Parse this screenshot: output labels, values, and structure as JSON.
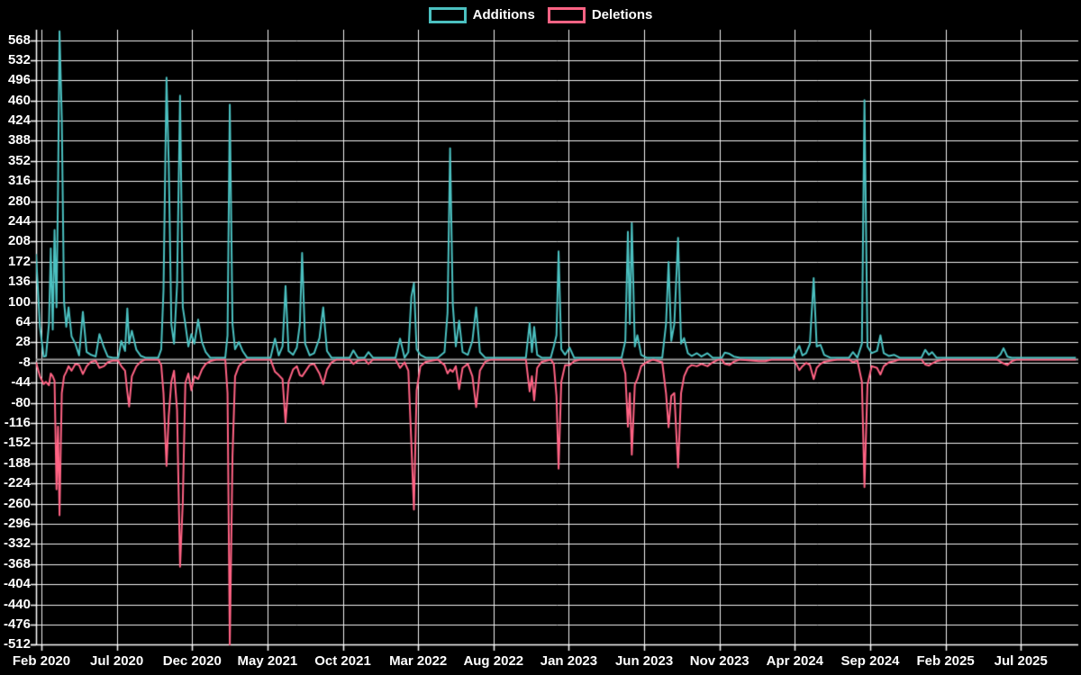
{
  "legend": {
    "items": [
      {
        "id": "additions",
        "label": "Additions",
        "color": "#4BC0C0"
      },
      {
        "id": "deletions",
        "label": "Deletions",
        "color": "#FF6384"
      }
    ]
  },
  "chart_data": {
    "type": "line",
    "title": "",
    "xlabel": "",
    "ylabel": "",
    "x_unit": "months since Feb 2020 (weekly data points)",
    "grid": true,
    "legend_position": "top-center",
    "ylim": [
      -512,
      586
    ],
    "xlim": [
      -0.4,
      68.7
    ],
    "y_ticks": [
      568,
      532,
      496,
      460,
      424,
      388,
      352,
      316,
      280,
      244,
      208,
      172,
      136,
      100,
      64,
      28,
      -8,
      -44,
      -80,
      -116,
      -152,
      -188,
      -224,
      -260,
      -296,
      -332,
      -368,
      -404,
      -440,
      -476,
      -512
    ],
    "x_ticks": [
      {
        "month": 0,
        "label": "Feb 2020"
      },
      {
        "month": 5,
        "label": "Jul 2020"
      },
      {
        "month": 10,
        "label": "Dec 2020"
      },
      {
        "month": 15,
        "label": "May 2021"
      },
      {
        "month": 20,
        "label": "Oct 2021"
      },
      {
        "month": 25,
        "label": "Mar 2022"
      },
      {
        "month": 30,
        "label": "Aug 2022"
      },
      {
        "month": 35,
        "label": "Jan 2023"
      },
      {
        "month": 40,
        "label": "Jun 2023"
      },
      {
        "month": 45,
        "label": "Nov 2023"
      },
      {
        "month": 50,
        "label": "Apr 2024"
      },
      {
        "month": 55,
        "label": "Sep 2024"
      },
      {
        "month": 60,
        "label": "Feb 2025"
      },
      {
        "month": 65,
        "label": "Jul 2025"
      }
    ],
    "series": [
      {
        "name": "Additions",
        "color": "#4BC0C0",
        "point_index": 1
      },
      {
        "name": "Deletions",
        "color": "#FF6384",
        "point_index": 2
      }
    ],
    "points_format": [
      "month",
      "additions",
      "deletions"
    ],
    "points": [
      [
        -0.36,
        185,
        -5
      ],
      [
        -0.1,
        55,
        -30
      ],
      [
        0.15,
        2,
        -44
      ],
      [
        0.3,
        3,
        -40
      ],
      [
        0.5,
        60,
        -46
      ],
      [
        0.62,
        195,
        -25
      ],
      [
        0.75,
        50,
        -30
      ],
      [
        0.87,
        228,
        -38
      ],
      [
        1.0,
        90,
        -232
      ],
      [
        1.1,
        300,
        -120
      ],
      [
        1.2,
        583,
        -278
      ],
      [
        1.35,
        428,
        -60
      ],
      [
        1.5,
        100,
        -30
      ],
      [
        1.65,
        55,
        -22
      ],
      [
        1.8,
        90,
        -12
      ],
      [
        2.0,
        38,
        -20
      ],
      [
        2.25,
        25,
        -8
      ],
      [
        2.5,
        4,
        -10
      ],
      [
        2.75,
        82,
        -26
      ],
      [
        3.0,
        10,
        -12
      ],
      [
        3.3,
        5,
        -4
      ],
      [
        3.6,
        2,
        -2
      ],
      [
        3.85,
        42,
        -15
      ],
      [
        4.15,
        18,
        -12
      ],
      [
        4.4,
        2,
        -5
      ],
      [
        4.75,
        0,
        -2
      ],
      [
        5.1,
        0,
        -2
      ],
      [
        5.3,
        30,
        -12
      ],
      [
        5.55,
        12,
        -20
      ],
      [
        5.7,
        88,
        -58
      ],
      [
        5.82,
        25,
        -84
      ],
      [
        6.0,
        48,
        -30
      ],
      [
        6.3,
        14,
        -12
      ],
      [
        6.6,
        3,
        -4
      ],
      [
        6.9,
        0,
        0
      ],
      [
        7.75,
        0,
        0
      ],
      [
        7.95,
        15,
        -10
      ],
      [
        8.1,
        120,
        -60
      ],
      [
        8.3,
        500,
        -190
      ],
      [
        8.45,
        345,
        -100
      ],
      [
        8.62,
        60,
        -40
      ],
      [
        8.8,
        25,
        -20
      ],
      [
        9.0,
        130,
        -90
      ],
      [
        9.2,
        468,
        -370
      ],
      [
        9.38,
        90,
        -255
      ],
      [
        9.55,
        60,
        -42
      ],
      [
        9.75,
        20,
        -25
      ],
      [
        9.95,
        42,
        -55
      ],
      [
        10.15,
        25,
        -30
      ],
      [
        10.4,
        68,
        -35
      ],
      [
        10.65,
        28,
        -18
      ],
      [
        10.9,
        10,
        -8
      ],
      [
        11.2,
        0,
        -3
      ],
      [
        11.6,
        0,
        0
      ],
      [
        12.2,
        0,
        0
      ],
      [
        12.35,
        40,
        -60
      ],
      [
        12.5,
        452,
        -511
      ],
      [
        12.68,
        60,
        -172
      ],
      [
        12.85,
        15,
        -30
      ],
      [
        13.1,
        28,
        -12
      ],
      [
        13.35,
        12,
        -5
      ],
      [
        13.65,
        0,
        0
      ],
      [
        15.2,
        0,
        0
      ],
      [
        15.5,
        34,
        -22
      ],
      [
        15.75,
        4,
        -28
      ],
      [
        16.0,
        20,
        -35
      ],
      [
        16.2,
        128,
        -113
      ],
      [
        16.4,
        12,
        -40
      ],
      [
        16.7,
        5,
        -18
      ],
      [
        16.95,
        18,
        -12
      ],
      [
        17.15,
        60,
        -28
      ],
      [
        17.3,
        187,
        -30
      ],
      [
        17.5,
        25,
        -22
      ],
      [
        17.8,
        4,
        -10
      ],
      [
        18.1,
        8,
        -8
      ],
      [
        18.45,
        35,
        -25
      ],
      [
        18.7,
        90,
        -44
      ],
      [
        18.95,
        12,
        -18
      ],
      [
        19.25,
        0,
        -5
      ],
      [
        19.6,
        0,
        0
      ],
      [
        20.45,
        0,
        0
      ],
      [
        20.7,
        13,
        -8
      ],
      [
        21.0,
        0,
        -2
      ],
      [
        21.45,
        0,
        0
      ],
      [
        21.7,
        10,
        -8
      ],
      [
        22.0,
        0,
        0
      ],
      [
        23.5,
        0,
        0
      ],
      [
        23.8,
        34,
        -15
      ],
      [
        24.1,
        0,
        -5
      ],
      [
        24.35,
        10,
        -20
      ],
      [
        24.55,
        109,
        -150
      ],
      [
        24.72,
        133,
        -268
      ],
      [
        24.9,
        15,
        -55
      ],
      [
        25.15,
        5,
        -12
      ],
      [
        25.5,
        0,
        -4
      ],
      [
        26.3,
        0,
        0
      ],
      [
        26.75,
        10,
        -10
      ],
      [
        26.95,
        80,
        -25
      ],
      [
        27.12,
        374,
        -18
      ],
      [
        27.3,
        95,
        -22
      ],
      [
        27.5,
        20,
        -12
      ],
      [
        27.72,
        66,
        -53
      ],
      [
        27.95,
        10,
        -15
      ],
      [
        28.3,
        5,
        -8
      ],
      [
        28.6,
        30,
        -30
      ],
      [
        28.85,
        90,
        -85
      ],
      [
        29.1,
        10,
        -20
      ],
      [
        29.45,
        0,
        -4
      ],
      [
        29.85,
        0,
        0
      ],
      [
        32.15,
        0,
        0
      ],
      [
        32.4,
        62,
        -57
      ],
      [
        32.55,
        10,
        -30
      ],
      [
        32.7,
        55,
        -73
      ],
      [
        32.9,
        5,
        -15
      ],
      [
        33.2,
        0,
        -4
      ],
      [
        33.8,
        0,
        0
      ],
      [
        34.0,
        20,
        -8
      ],
      [
        34.18,
        40,
        -65
      ],
      [
        34.32,
        190,
        -195
      ],
      [
        34.5,
        15,
        -40
      ],
      [
        34.75,
        5,
        -10
      ],
      [
        35.05,
        18,
        -10
      ],
      [
        35.35,
        0,
        -3
      ],
      [
        35.75,
        0,
        0
      ],
      [
        38.5,
        0,
        0
      ],
      [
        38.75,
        30,
        -25
      ],
      [
        38.92,
        225,
        -120
      ],
      [
        39.05,
        60,
        -60
      ],
      [
        39.18,
        240,
        -170
      ],
      [
        39.38,
        20,
        -45
      ],
      [
        39.55,
        40,
        -35
      ],
      [
        39.8,
        5,
        -12
      ],
      [
        40.15,
        0,
        -5
      ],
      [
        40.6,
        0,
        0
      ],
      [
        41.2,
        0,
        -5
      ],
      [
        41.45,
        60,
        -60
      ],
      [
        41.62,
        171,
        -121
      ],
      [
        41.8,
        30,
        -65
      ],
      [
        42.0,
        60,
        -60
      ],
      [
        42.25,
        214,
        -193
      ],
      [
        42.45,
        25,
        -60
      ],
      [
        42.65,
        35,
        -30
      ],
      [
        42.9,
        8,
        -15
      ],
      [
        43.15,
        3,
        -10
      ],
      [
        43.5,
        8,
        -12
      ],
      [
        43.8,
        2,
        -8
      ],
      [
        44.2,
        8,
        -12
      ],
      [
        44.55,
        0,
        -5
      ],
      [
        44.95,
        0,
        0
      ],
      [
        45.15,
        0,
        0
      ],
      [
        45.35,
        9,
        -8
      ],
      [
        45.65,
        7,
        -10
      ],
      [
        45.95,
        2,
        -4
      ],
      [
        46.35,
        0,
        0
      ],
      [
        47.6,
        0,
        -3
      ],
      [
        48.05,
        0,
        -3
      ],
      [
        48.45,
        0,
        0
      ],
      [
        49.9,
        0,
        0
      ],
      [
        50.1,
        12,
        -8
      ],
      [
        50.3,
        21,
        -19
      ],
      [
        50.5,
        4,
        -12
      ],
      [
        50.75,
        8,
        -6
      ],
      [
        51.0,
        25,
        -10
      ],
      [
        51.25,
        142,
        -35
      ],
      [
        51.45,
        20,
        -15
      ],
      [
        51.7,
        23,
        -8
      ],
      [
        51.95,
        5,
        -4
      ],
      [
        52.35,
        0,
        -2
      ],
      [
        52.8,
        0,
        0
      ],
      [
        53.6,
        0,
        0
      ],
      [
        53.85,
        10,
        -5
      ],
      [
        54.15,
        0,
        -2
      ],
      [
        54.45,
        25,
        -40
      ],
      [
        54.62,
        460,
        -228
      ],
      [
        54.82,
        20,
        -45
      ],
      [
        55.1,
        8,
        -12
      ],
      [
        55.45,
        12,
        -15
      ],
      [
        55.68,
        40,
        -27
      ],
      [
        55.9,
        8,
        -12
      ],
      [
        56.25,
        3,
        -5
      ],
      [
        56.6,
        5,
        -3
      ],
      [
        56.95,
        0,
        0
      ],
      [
        58.4,
        0,
        0
      ],
      [
        58.65,
        14,
        -9
      ],
      [
        58.9,
        5,
        -11
      ],
      [
        59.1,
        10,
        -7
      ],
      [
        59.4,
        0,
        -3
      ],
      [
        59.85,
        0,
        0
      ],
      [
        63.4,
        0,
        0
      ],
      [
        63.65,
        6,
        -4
      ],
      [
        63.85,
        17,
        -7
      ],
      [
        64.1,
        2,
        -10
      ],
      [
        64.4,
        0,
        -3
      ],
      [
        64.75,
        0,
        0
      ],
      [
        68.65,
        0,
        0
      ]
    ],
    "colors": {
      "background": "#000000",
      "grid": "#f2f2f2",
      "axis": "#ffffff",
      "text": "#ffffff",
      "zero_line": "#9e9e9e"
    }
  }
}
